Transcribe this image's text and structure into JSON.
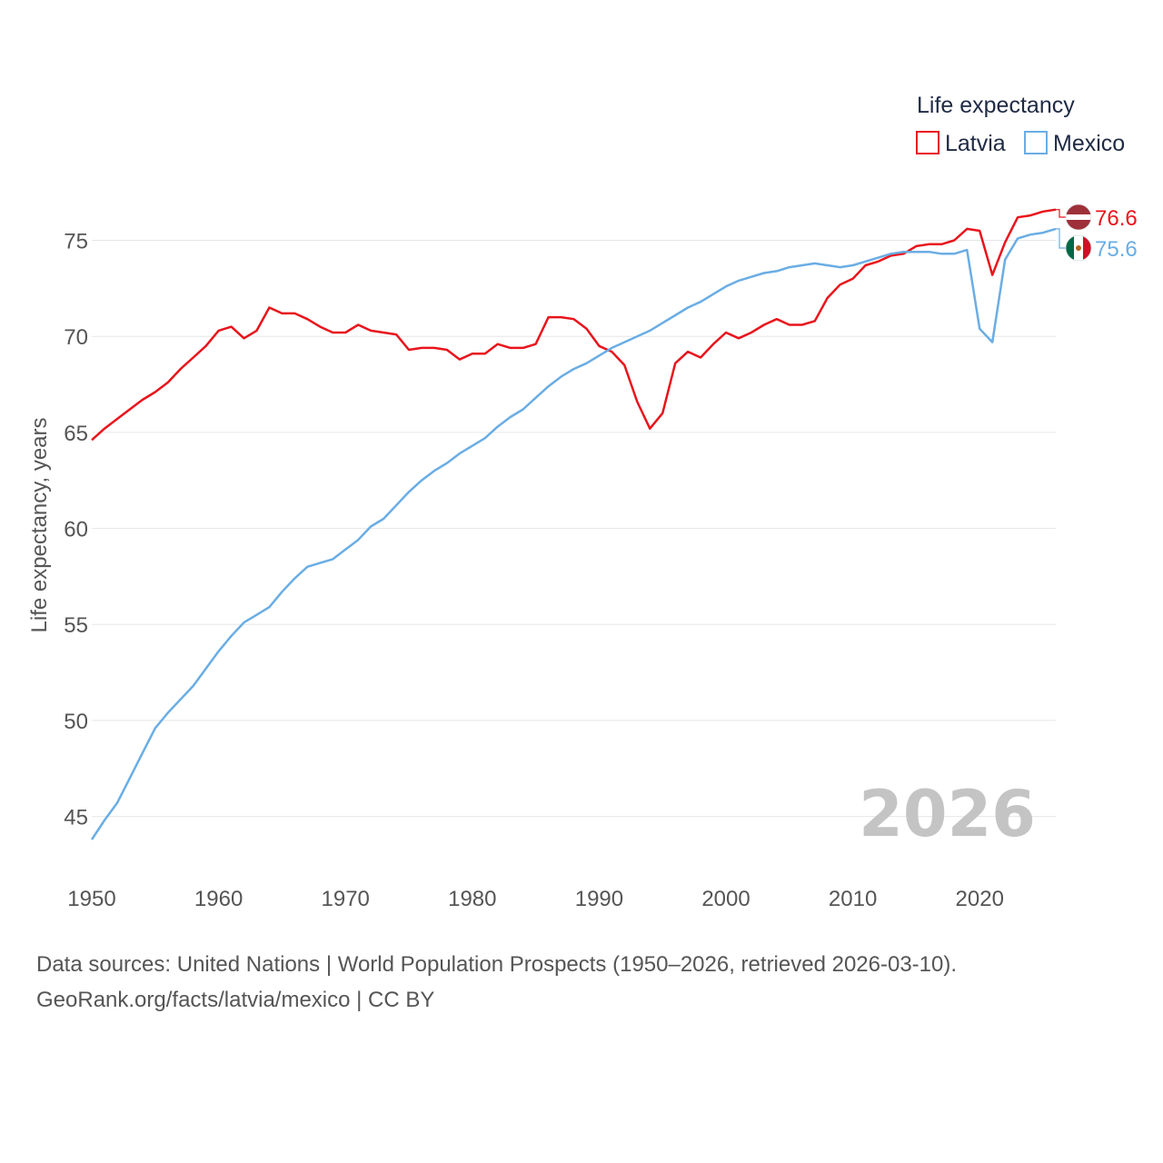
{
  "chart_data": {
    "type": "line",
    "title": "",
    "xlabel": "",
    "ylabel": "Life expectancy, years",
    "xlim": [
      1950,
      2026
    ],
    "ylim": [
      42,
      79
    ],
    "x_ticks": [
      "1950",
      "1960",
      "1970",
      "1980",
      "1990",
      "2000",
      "2010",
      "2020"
    ],
    "y_ticks": [
      "45",
      "50",
      "55",
      "60",
      "65",
      "70",
      "75"
    ],
    "grid": true,
    "legend_title": "Life expectancy",
    "legend_position": "top-right",
    "year_label": "2026",
    "x": [
      1950,
      1951,
      1952,
      1953,
      1954,
      1955,
      1956,
      1957,
      1958,
      1959,
      1960,
      1961,
      1962,
      1963,
      1964,
      1965,
      1966,
      1967,
      1968,
      1969,
      1970,
      1971,
      1972,
      1973,
      1974,
      1975,
      1976,
      1977,
      1978,
      1979,
      1980,
      1981,
      1982,
      1983,
      1984,
      1985,
      1986,
      1987,
      1988,
      1989,
      1990,
      1991,
      1992,
      1993,
      1994,
      1995,
      1996,
      1997,
      1998,
      1999,
      2000,
      2001,
      2002,
      2003,
      2004,
      2005,
      2006,
      2007,
      2008,
      2009,
      2010,
      2011,
      2012,
      2013,
      2014,
      2015,
      2016,
      2017,
      2018,
      2019,
      2020,
      2021,
      2022,
      2023,
      2024,
      2025,
      2026
    ],
    "series": [
      {
        "name": "Latvia",
        "color": "#e8141c",
        "end_label": "76.6",
        "flag": "latvia-flag-icon",
        "values": [
          64.6,
          65.2,
          65.7,
          66.2,
          66.7,
          67.1,
          67.6,
          68.3,
          68.9,
          69.5,
          70.3,
          70.5,
          69.9,
          70.3,
          71.5,
          71.2,
          71.2,
          70.9,
          70.5,
          70.2,
          70.2,
          70.6,
          70.3,
          70.2,
          70.1,
          69.3,
          69.4,
          69.4,
          69.3,
          68.8,
          69.1,
          69.1,
          69.6,
          69.4,
          69.4,
          69.6,
          71.0,
          71.0,
          70.9,
          70.4,
          69.5,
          69.2,
          68.5,
          66.6,
          65.2,
          66.0,
          68.6,
          69.2,
          68.9,
          69.6,
          70.2,
          69.9,
          70.2,
          70.6,
          70.9,
          70.6,
          70.6,
          70.8,
          72.0,
          72.7,
          73.0,
          73.7,
          73.9,
          74.2,
          74.3,
          74.7,
          74.8,
          74.8,
          75.0,
          75.6,
          75.5,
          73.2,
          74.9,
          76.2,
          76.3,
          76.5,
          76.6
        ]
      },
      {
        "name": "Mexico",
        "color": "#6aade4",
        "end_label": "75.6",
        "flag": "mexico-flag-icon",
        "values": [
          43.8,
          44.8,
          45.7,
          47.0,
          48.3,
          49.6,
          50.4,
          51.1,
          51.8,
          52.7,
          53.6,
          54.4,
          55.1,
          55.5,
          55.9,
          56.7,
          57.4,
          58.0,
          58.2,
          58.4,
          58.9,
          59.4,
          60.1,
          60.5,
          61.2,
          61.9,
          62.5,
          63.0,
          63.4,
          63.9,
          64.3,
          64.7,
          65.3,
          65.8,
          66.2,
          66.8,
          67.4,
          67.9,
          68.3,
          68.6,
          69.0,
          69.4,
          69.7,
          70.0,
          70.3,
          70.7,
          71.1,
          71.5,
          71.8,
          72.2,
          72.6,
          72.9,
          73.1,
          73.3,
          73.4,
          73.6,
          73.7,
          73.8,
          73.7,
          73.6,
          73.7,
          73.9,
          74.1,
          74.3,
          74.4,
          74.4,
          74.4,
          74.3,
          74.3,
          74.5,
          70.4,
          69.7,
          74.0,
          75.1,
          75.3,
          75.4,
          75.6
        ]
      }
    ]
  },
  "source": {
    "line1": "Data sources: United Nations | World Population Prospects (1950–2026, retrieved 2026-03-10).",
    "line2": "GeoRank.org/facts/latvia/mexico | CC BY"
  }
}
